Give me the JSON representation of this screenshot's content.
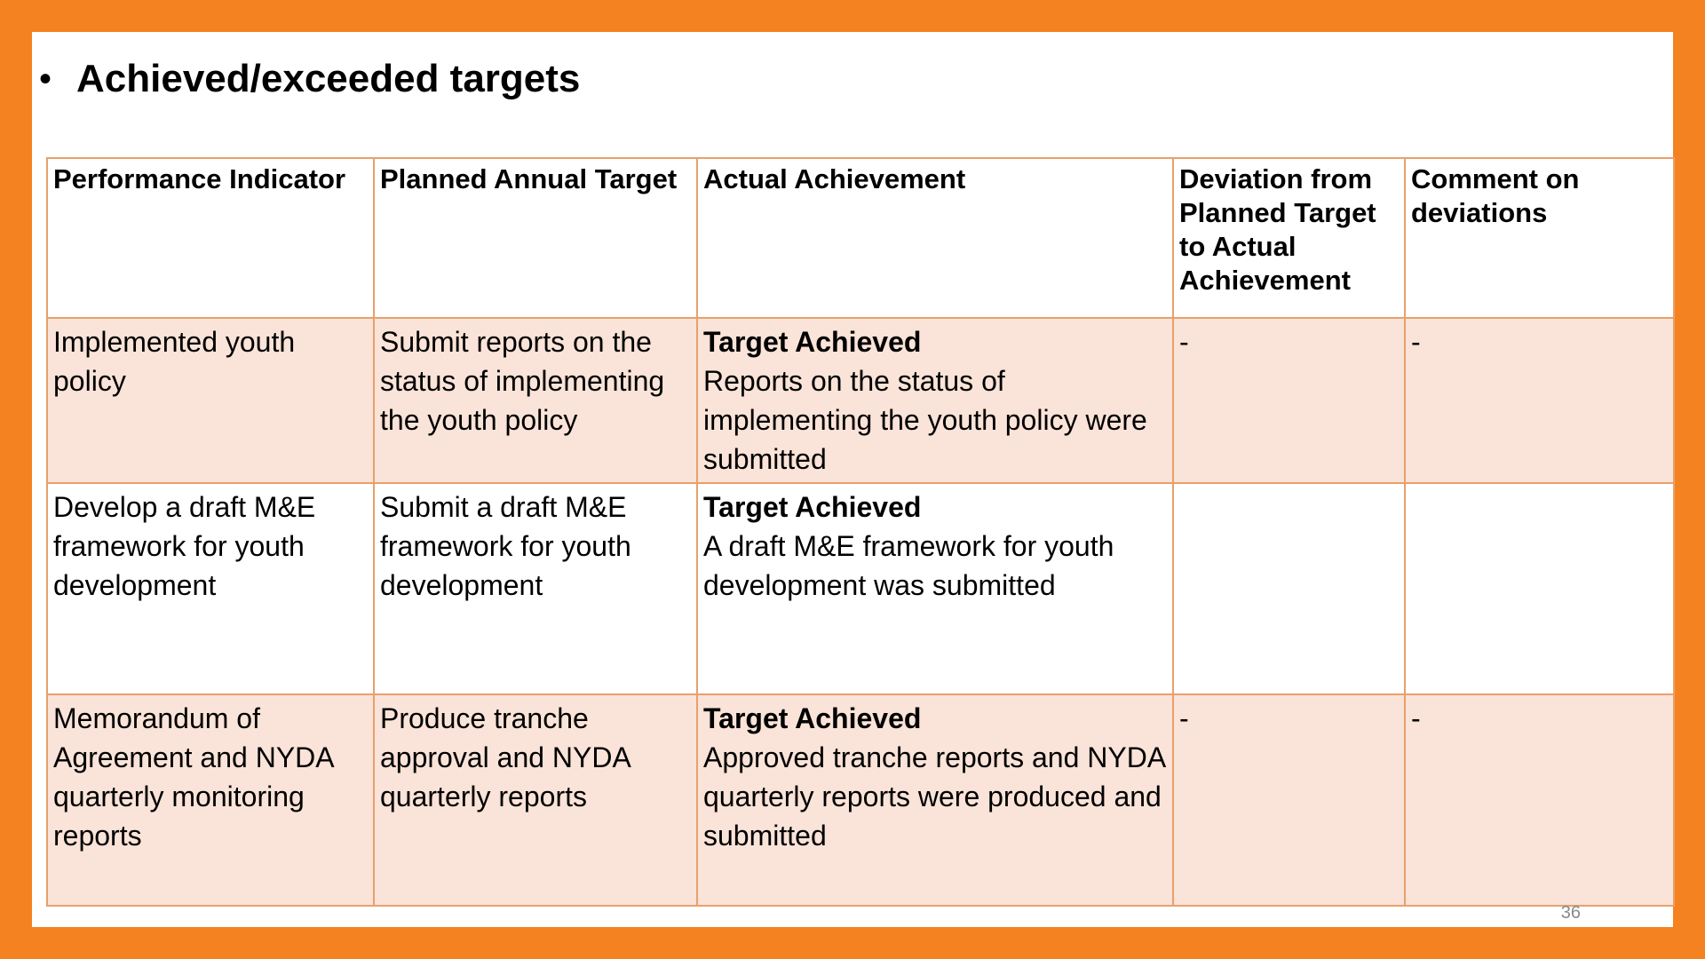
{
  "title": "Achieved/exceeded targets",
  "bullet": "•",
  "table": {
    "headers": [
      "Performance Indicator",
      "Planned Annual Target",
      "Actual Achievement",
      "Deviation from Planned Target to Actual Achievement",
      "Comment on deviations"
    ],
    "rows": [
      {
        "indicator": "Implemented youth policy",
        "target": "Submit reports on the status of implementing the youth policy",
        "achievement_heading": "Target Achieved",
        "achievement_text": "Reports on the status of implementing the youth policy were submitted",
        "deviation": "-",
        "comment": "-"
      },
      {
        "indicator": "Develop a draft M&E framework for youth development",
        "target": "Submit a draft M&E framework for youth development",
        "achievement_heading": "Target Achieved",
        "achievement_text": "A draft M&E framework for youth development was submitted",
        "deviation": "",
        "comment": ""
      },
      {
        "indicator": "Memorandum of Agreement and NYDA quarterly monitoring reports",
        "target": "Produce tranche approval and NYDA quarterly reports",
        "achievement_heading": "Target Achieved",
        "achievement_text": "Approved tranche reports and NYDA quarterly reports were produced and submitted",
        "deviation": "-",
        "comment": "-"
      }
    ]
  },
  "page_number": "36",
  "colors": {
    "frame": "#F58220",
    "row_shade": "#FAE3D8",
    "border": "#E8A06B"
  }
}
